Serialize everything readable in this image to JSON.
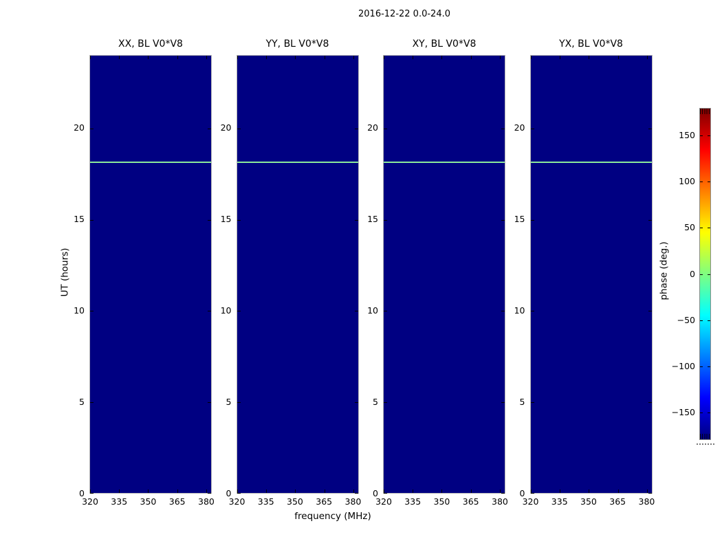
{
  "figure": {
    "title": "2016-12-22 0.0-24.0"
  },
  "chart_data": {
    "type": "heatmap",
    "title": "2016-12-22 0.0-24.0",
    "xlabel": "frequency (MHz)",
    "ylabel": "UT (hours)",
    "panels": [
      {
        "label": "XX, BL V0*V8"
      },
      {
        "label": "YY, BL V0*V8"
      },
      {
        "label": "XY, BL V0*V8"
      },
      {
        "label": "YX, BL V0*V8"
      }
    ],
    "x_ticks": [
      320,
      335,
      350,
      365,
      380
    ],
    "x_range_mhz": [
      320,
      382.5
    ],
    "y_ticks": [
      0,
      5,
      10,
      15,
      20
    ],
    "y_range_hours": [
      0,
      24
    ],
    "colormap": "jet",
    "colorbar": {
      "label": "phase (deg.)",
      "ticks": [
        150,
        100,
        50,
        0,
        -50,
        -100,
        -150
      ],
      "range_deg": [
        -180,
        180
      ]
    },
    "data_summary": {
      "background_phase_deg": -180,
      "feature_rows": [
        {
          "ut_hours": 18.2,
          "phase_deg": 15,
          "extent": "all frequencies, present in all four panels"
        }
      ]
    },
    "colors": {
      "figure_background": "#ffffff",
      "panel_background": "#000082",
      "feature_line": "#8ce99a",
      "jet_stops_top_to_bottom": [
        "#800000",
        "#ff0000",
        "#ffff00",
        "#00ffff",
        "#0000ff",
        "#000080"
      ],
      "jet_stop_positions_pct": [
        0,
        12.5,
        37.5,
        62.5,
        87.5,
        100
      ]
    }
  }
}
